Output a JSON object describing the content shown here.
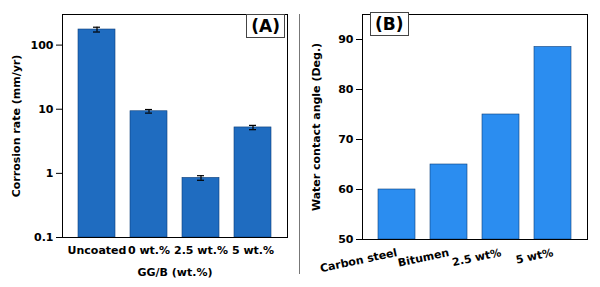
{
  "chart_data": [
    {
      "type": "bar",
      "annotations": [
        "(A)"
      ],
      "categories": [
        "Uncoated",
        "0 wt.%",
        "2.5 wt.%",
        "5 wt.%"
      ],
      "values": [
        175,
        9.3,
        0.85,
        5.2
      ],
      "errors": [
        15,
        0.6,
        0.07,
        0.4
      ],
      "x_label": "GG/B (wt.%)",
      "y_label": "Corrosion rate (mm/yr)",
      "log": "y",
      "ylim": [
        0.1,
        300
      ],
      "yticks": [
        0.1,
        1,
        10,
        100
      ],
      "color": "#1f6cc0",
      "grid": false
    },
    {
      "type": "bar",
      "annotations": [
        "(B)"
      ],
      "categories": [
        "Carbon steel",
        "Bitumen",
        "2.5 wt%",
        "5 wt%"
      ],
      "values": [
        60,
        65,
        75,
        88.5
      ],
      "y_label": "Water contact angle (Deg.)",
      "ylim": [
        50,
        95
      ],
      "yticks": [
        50,
        60,
        70,
        80,
        90
      ],
      "color": "#2b8df0",
      "grid": false
    }
  ]
}
